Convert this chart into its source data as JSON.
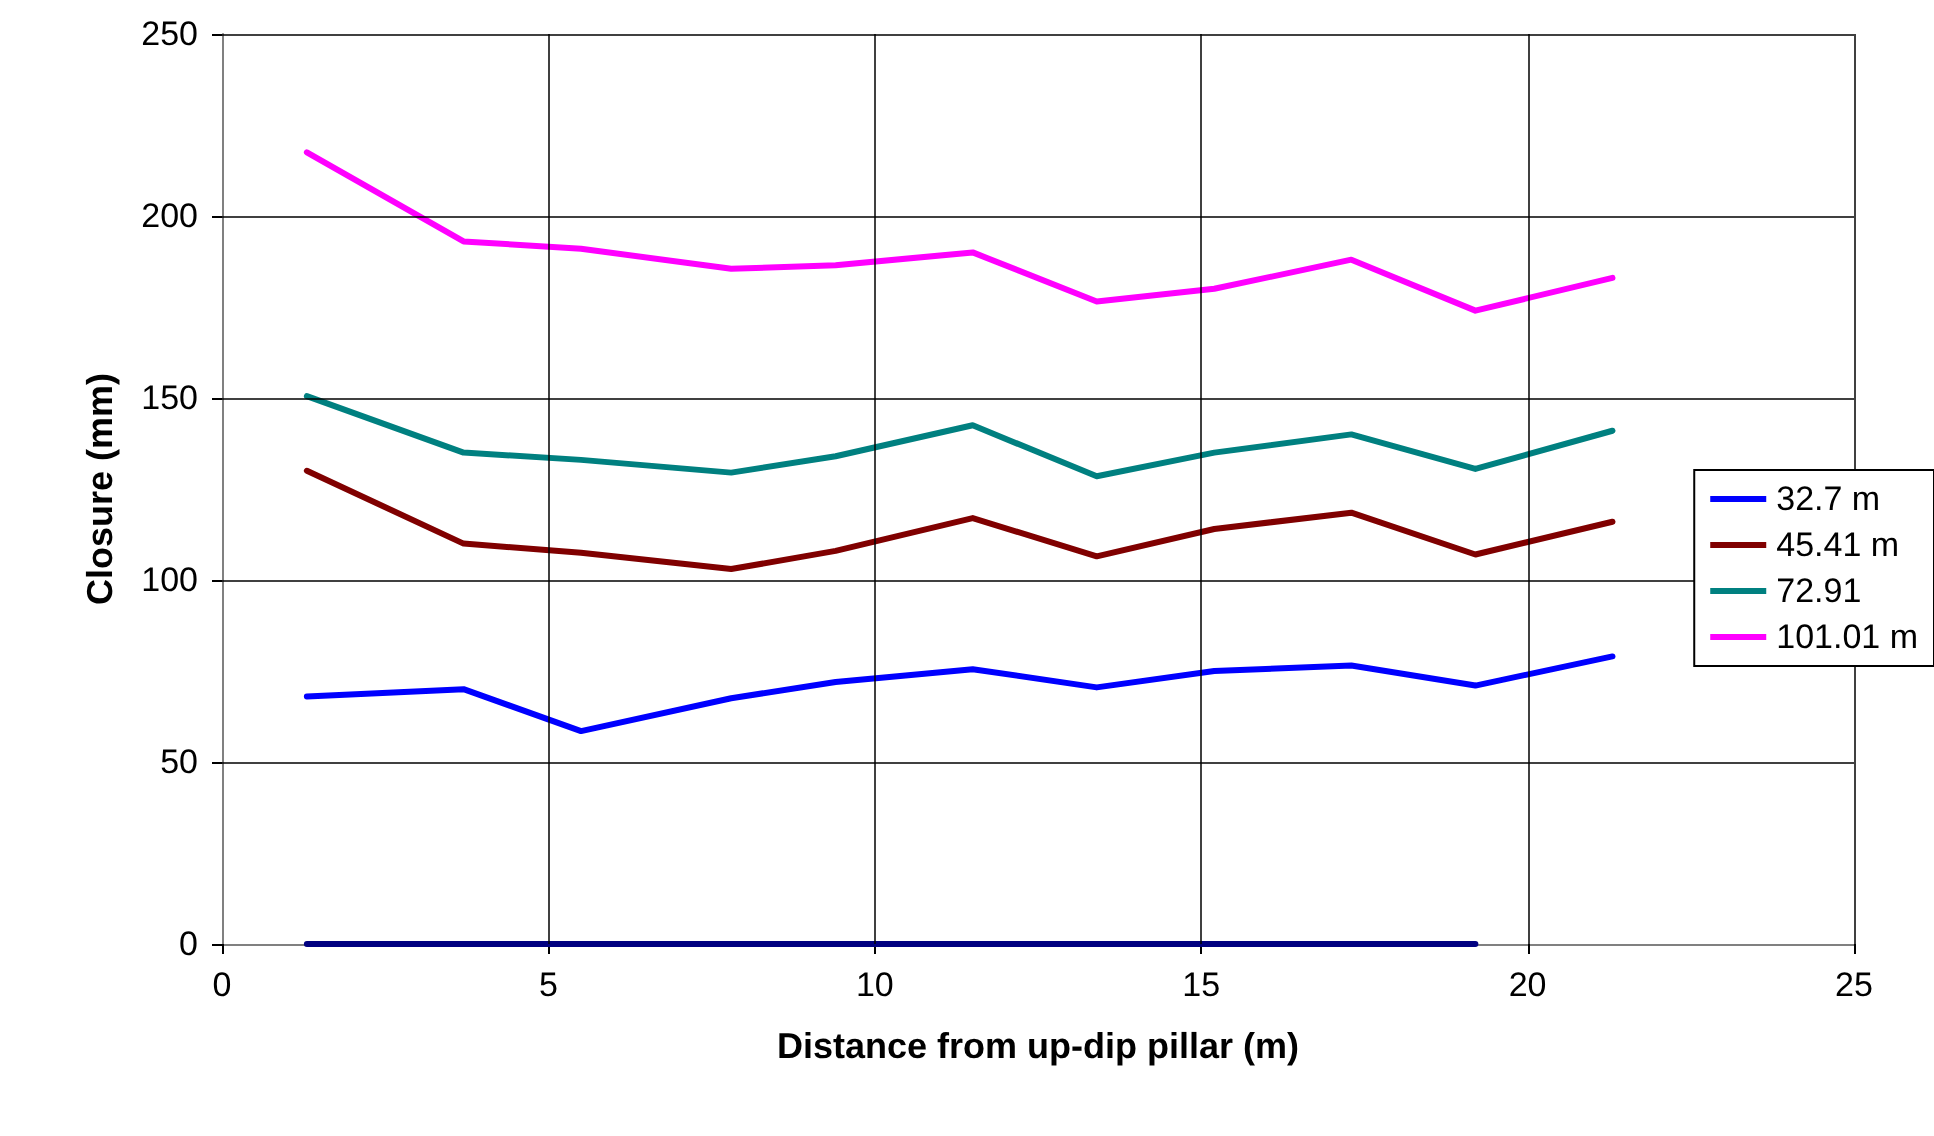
{
  "chart_data": {
    "type": "line",
    "xlabel": "Distance from up-dip pillar (m)",
    "ylabel": "Closure (mm)",
    "x": [
      1.3,
      3.7,
      5.5,
      7.8,
      9.4,
      11.5,
      13.4,
      15.2,
      17.3,
      19.2,
      21.3
    ],
    "series": [
      {
        "name": "32.7 m",
        "color": "#0000ff",
        "values": [
          68,
          70,
          58.5,
          67.5,
          72,
          75.5,
          70.5,
          75,
          76.5,
          71,
          79
        ]
      },
      {
        "name": "45.41 m",
        "color": "#800000",
        "values": [
          130,
          110,
          107.5,
          103,
          108,
          117,
          106.5,
          114,
          118.5,
          107,
          116
        ]
      },
      {
        "name": "72.91",
        "color": "#008080",
        "values": [
          150.5,
          135,
          133,
          129.5,
          134,
          142.5,
          128.5,
          135,
          140,
          130.5,
          141
        ]
      },
      {
        "name": "101.01 m",
        "color": "#ff00ff",
        "values": [
          217.5,
          193,
          191,
          185.5,
          186.5,
          190,
          176.5,
          180,
          188,
          174,
          183
        ]
      },
      {
        "color": "#000080",
        "x": [
          1.3,
          19.2
        ],
        "values": [
          0,
          0
        ]
      }
    ],
    "xlim": [
      0,
      25
    ],
    "xticks": [
      0,
      5,
      10,
      15,
      20,
      25
    ],
    "ylim": [
      0,
      250
    ],
    "yticks": [
      0,
      50,
      100,
      150,
      200,
      250
    ],
    "grid": true,
    "legend": "right",
    "marker": "none",
    "line_style": "solid"
  }
}
